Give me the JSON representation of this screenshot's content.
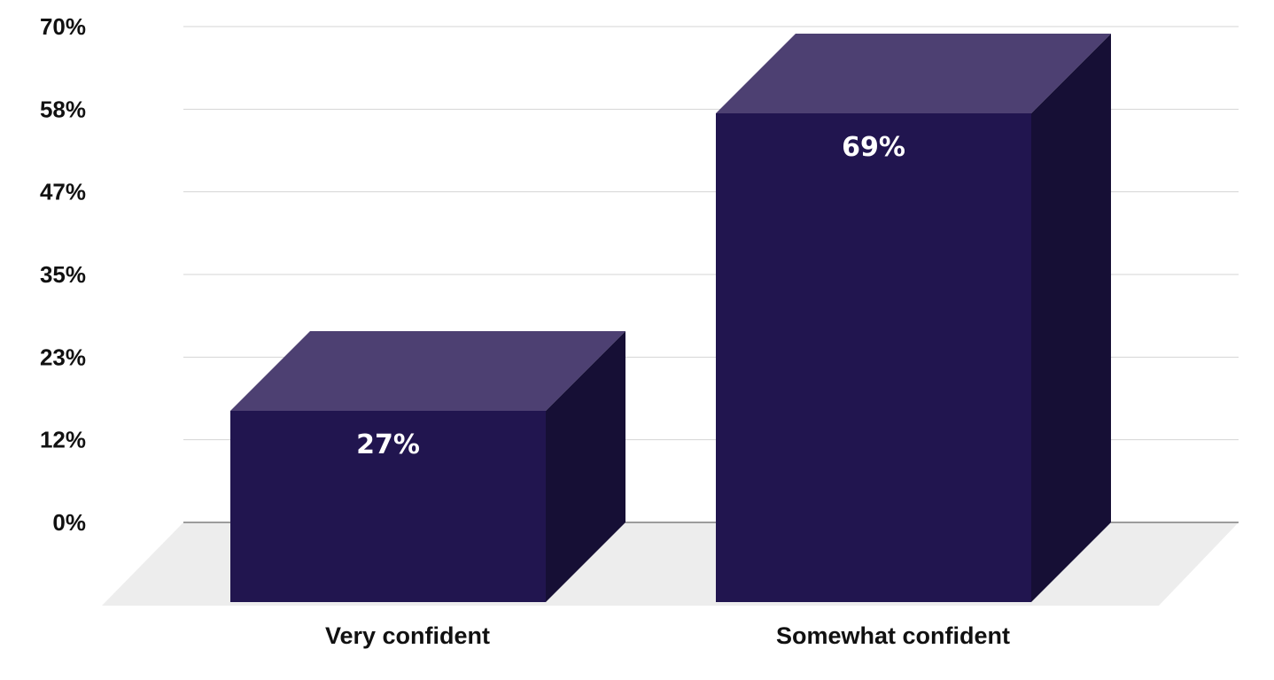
{
  "chart_data": {
    "type": "bar",
    "categories": [
      "Very confident",
      "Somewhat confident"
    ],
    "values": [
      27,
      69
    ],
    "value_labels": [
      "27%",
      "69%"
    ],
    "title": "",
    "xlabel": "",
    "ylabel": "",
    "ylim": [
      0,
      70
    ],
    "yticks": [
      "0%",
      "12%",
      "23%",
      "35%",
      "47%",
      "58%",
      "70%"
    ],
    "grid": true,
    "legend": "none",
    "style": "3d",
    "colors": {
      "front": "#21154f",
      "top": "#4d4072",
      "side": "#160f35",
      "floor": "#ededed",
      "grid": "#d4d4d4",
      "baseline": "#444444"
    }
  }
}
